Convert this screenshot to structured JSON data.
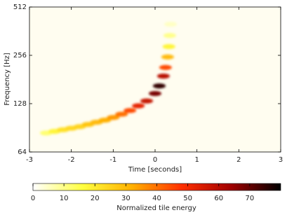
{
  "chart_data": {
    "type": "spectrogram",
    "xlabel": "Time [seconds]",
    "ylabel": "Frequency [Hz]",
    "xlim": [
      -3,
      3
    ],
    "xticks": [
      -3,
      -2,
      -1,
      0,
      1,
      2,
      3
    ],
    "ylim": [
      64,
      512
    ],
    "yticks": [
      64,
      128,
      256,
      512
    ],
    "yscale": "log",
    "colormap": [
      "#ffffff",
      "#ffff40",
      "#ffb000",
      "#ff3000",
      "#a00000",
      "#000000"
    ],
    "colorbar": {
      "label": "Normalized tile energy",
      "lim": [
        0,
        80
      ],
      "ticks": [
        0,
        10,
        20,
        30,
        40,
        50,
        60,
        70
      ]
    },
    "x": [
      -2.6,
      -2.4,
      -2.2,
      -2.0,
      -1.8,
      -1.6,
      -1.4,
      -1.2,
      -1.0,
      -0.8,
      -0.6,
      -0.4,
      -0.2,
      0.0,
      0.1,
      0.2,
      0.25,
      0.3,
      0.33,
      0.35,
      0.37
    ],
    "frequency": [
      84,
      86,
      88,
      90,
      92,
      95,
      98,
      101,
      105,
      110,
      116,
      124,
      133,
      148,
      165,
      190,
      215,
      250,
      290,
      340,
      400
    ],
    "energy": [
      12,
      18,
      22,
      24,
      25,
      28,
      30,
      32,
      35,
      40,
      45,
      52,
      58,
      68,
      75,
      60,
      45,
      30,
      18,
      10,
      5
    ]
  }
}
